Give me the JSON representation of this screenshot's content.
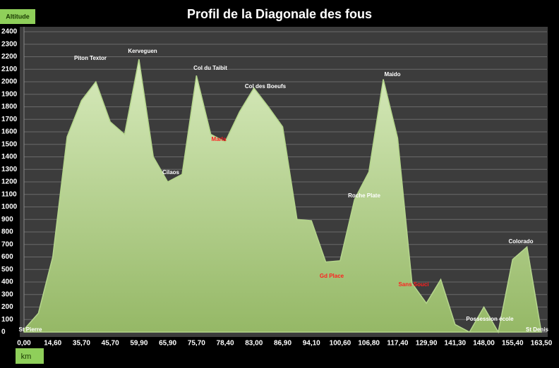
{
  "chart_data": {
    "type": "area",
    "title": "Profil de la Diagonale des fous",
    "y_label": "Altitude",
    "x_label": "km",
    "categories": [
      "0,00",
      null,
      "14,60",
      null,
      "35,70",
      null,
      "45,70",
      null,
      "59,90",
      null,
      "65,90",
      null,
      "75,70",
      null,
      "78,40",
      null,
      "83,00",
      null,
      "86,90",
      null,
      "94,10",
      null,
      "100,60",
      null,
      "106,80",
      null,
      "117,40",
      null,
      "129,90",
      null,
      "141,30",
      null,
      "148,00",
      null,
      "155,40",
      null,
      "163,50"
    ],
    "values": [
      20,
      150,
      600,
      1560,
      1850,
      2000,
      1680,
      1580,
      2180,
      1400,
      1200,
      1260,
      2050,
      1580,
      1520,
      1760,
      1950,
      1800,
      1640,
      900,
      890,
      560,
      570,
      1060,
      1280,
      2020,
      1550,
      390,
      230,
      420,
      60,
      0,
      200,
      0,
      580,
      680,
      0
    ],
    "color": "#b5d68c",
    "ylim": [
      0,
      2400
    ],
    "yticks": [
      0,
      100,
      200,
      300,
      400,
      500,
      600,
      700,
      800,
      900,
      1000,
      1100,
      1200,
      1300,
      1400,
      1500,
      1600,
      1700,
      1800,
      1900,
      2000,
      2100,
      2200,
      2300,
      2400
    ],
    "grid": true,
    "annotations": [
      {
        "text": "St Pierre",
        "color": "#ffffff"
      },
      {
        "text": "Piton Textor",
        "color": "#ffffff"
      },
      {
        "text": "Kerveguen",
        "color": "#ffffff"
      },
      {
        "text": "Col du Taibit",
        "color": "#ffffff"
      },
      {
        "text": "Col des Boeufs",
        "color": "#ffffff"
      },
      {
        "text": "Marla",
        "color": "#ff2020"
      },
      {
        "text": "Cilaos",
        "color": "#ffffff"
      },
      {
        "text": "Roche Plate",
        "color": "#ffffff"
      },
      {
        "text": "Gd Place",
        "color": "#ff2020"
      },
      {
        "text": "Maido",
        "color": "#ffffff"
      },
      {
        "text": "Sans Souci",
        "color": "#ff2020"
      },
      {
        "text": "Possession école",
        "color": "#ffffff"
      },
      {
        "text": "Colorado",
        "color": "#ffffff"
      },
      {
        "text": "St Denis",
        "color": "#ffffff"
      }
    ]
  }
}
